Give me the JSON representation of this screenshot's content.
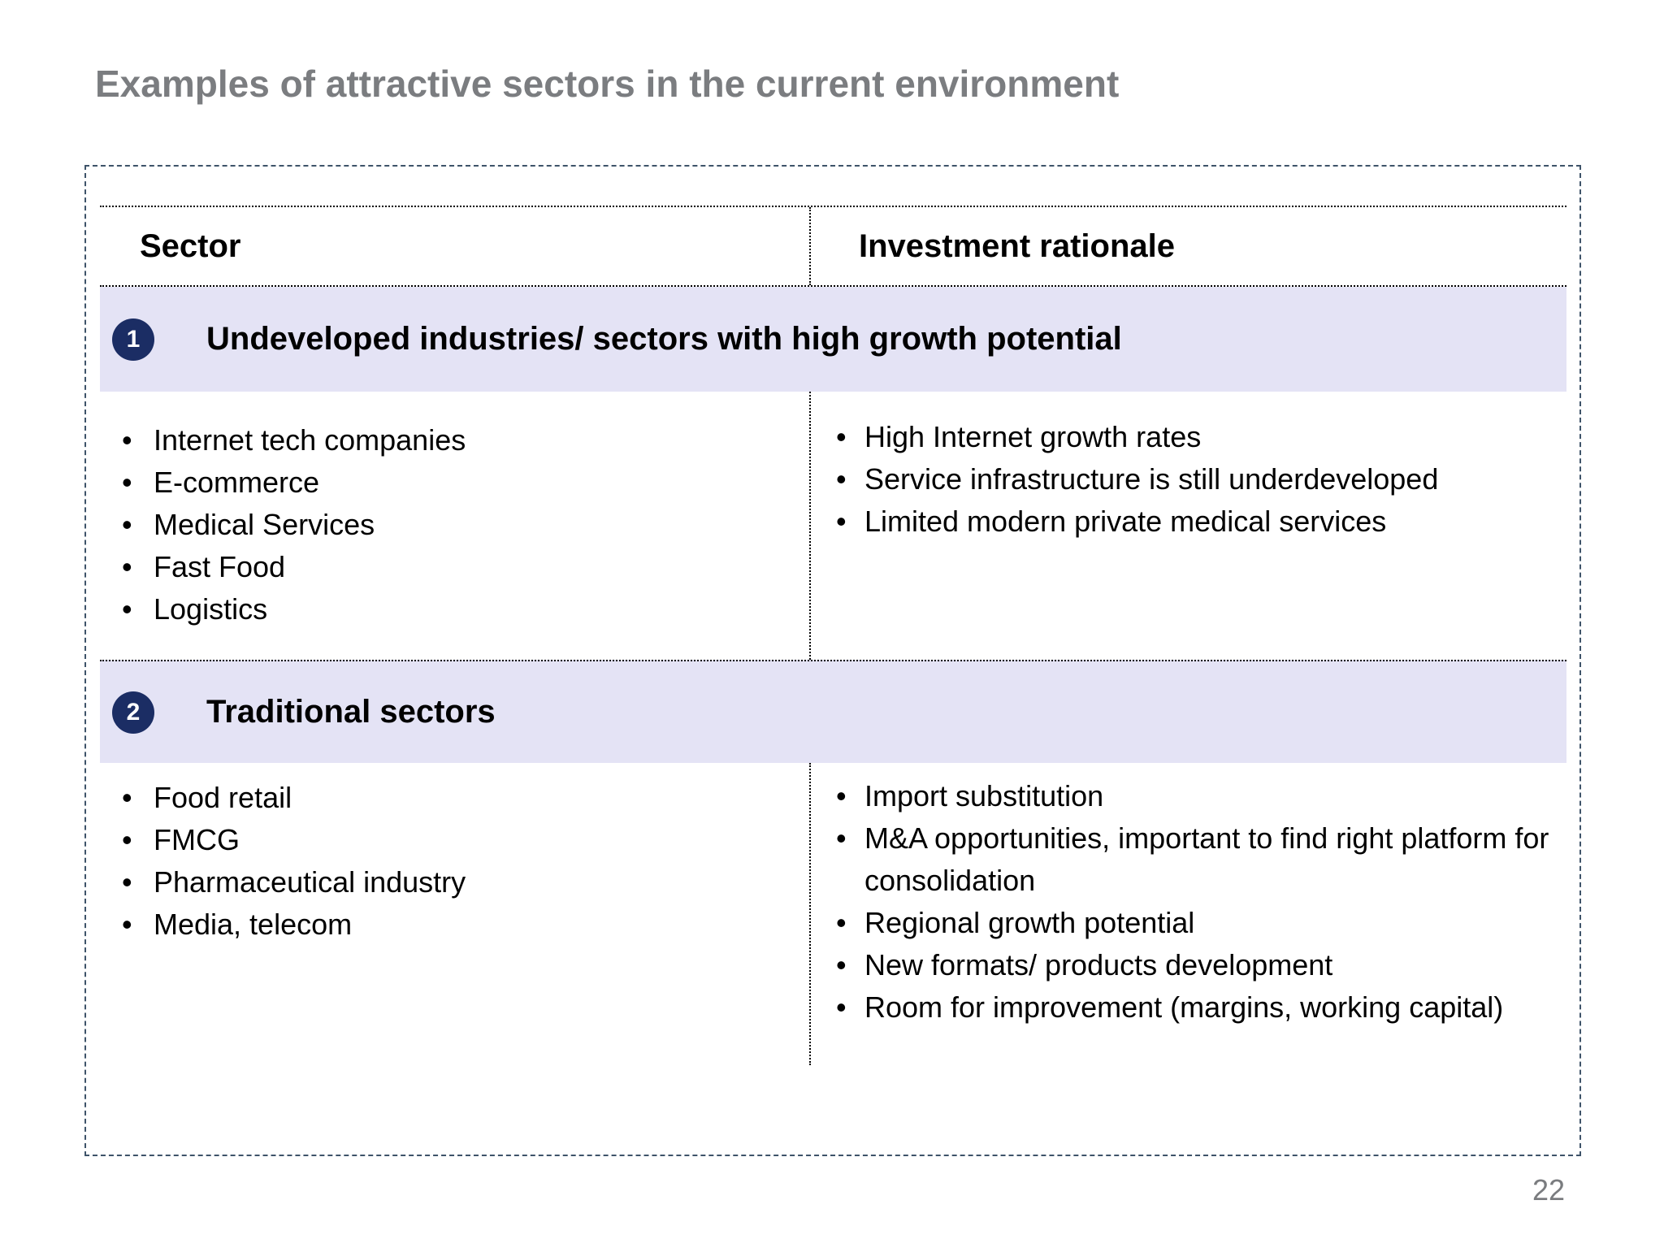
{
  "page": {
    "title": "Examples of attractive sectors in the current environment",
    "page_number": "22"
  },
  "table": {
    "headers": {
      "sector": "Sector",
      "rationale": "Investment rationale"
    },
    "sections": [
      {
        "number": "1",
        "heading": "Undeveloped industries/ sectors with high growth potential",
        "sector_items": [
          "Internet tech companies",
          "E-commerce",
          "Medical Services",
          "Fast Food",
          "Logistics"
        ],
        "rationale_items": [
          "High Internet growth rates",
          "Service infrastructure is still underdeveloped",
          "Limited modern private medical services"
        ]
      },
      {
        "number": "2",
        "heading": "Traditional sectors",
        "sector_items": [
          "Food retail",
          "FMCG",
          "Pharmaceutical industry",
          "Media, telecom"
        ],
        "rationale_items": [
          "Import substitution",
          "M&A opportunities, important to find right platform for consolidation",
          "Regional growth potential",
          "New formats/ products development",
          "Room for improvement (margins, working capital)"
        ]
      }
    ]
  },
  "colors": {
    "band": "#e4e3f5",
    "badge": "#1b2d64",
    "frame": "#3e5369",
    "title_gray": "#7b7d80",
    "page_gray": "#7a7c7f"
  }
}
